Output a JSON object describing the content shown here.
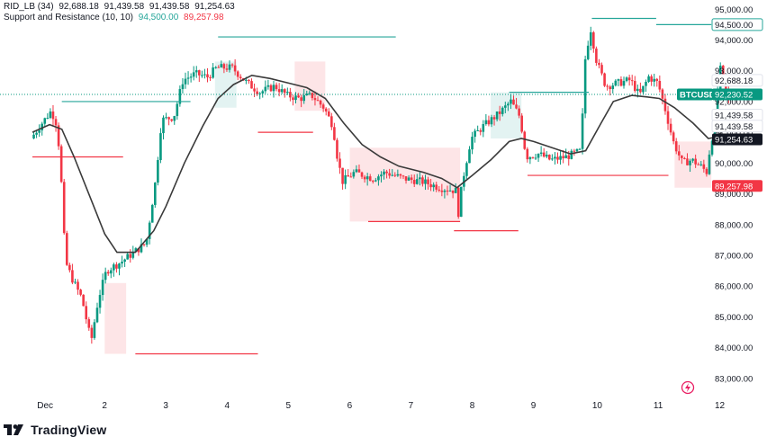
{
  "legend": {
    "line1": {
      "name": "RID_LB (34)",
      "values": [
        "92,688.18",
        "91,439.58",
        "91,439.58",
        "91,254.63"
      ]
    },
    "line2": {
      "name": "Support and Resistance (10, 10)",
      "values": [
        "94,500.00",
        "89,257.98"
      ],
      "colors": [
        "#26a69a",
        "#f23645"
      ]
    }
  },
  "watermark": "TradingView",
  "symbol_tag": "BTCUSD",
  "colors": {
    "up": "#089981",
    "down": "#f23645",
    "sma": "#3a3a3a",
    "support": "#f23645",
    "resistance": "#26a69a",
    "axis_text": "#131722"
  },
  "chart_data": {
    "type": "candlestick",
    "symbol": "BTCUSD",
    "ylim": [
      82500,
      95300
    ],
    "yticks": [
      83000,
      84000,
      85000,
      86000,
      87000,
      88000,
      89000,
      90000,
      91000,
      92000,
      93000,
      94000,
      95000
    ],
    "ytick_labels": [
      "83,000.00",
      "84,000.00",
      "85,000.00",
      "86,000.00",
      "87,000.00",
      "88,000.00",
      "89,000.00",
      "90,000.00",
      "91,000.00",
      "92,000.00",
      "93,000.00",
      "94,000.00",
      "95,000.00"
    ],
    "xlim": [
      0.82,
      12.25
    ],
    "xticks": [
      1,
      2,
      3,
      4,
      5,
      6,
      7,
      8,
      9,
      10,
      11,
      12
    ],
    "xtick_labels": [
      "Dec",
      "2",
      "3",
      "4",
      "5",
      "6",
      "7",
      "8",
      "9",
      "10",
      "11",
      "12"
    ],
    "price_path": [
      [
        0.82,
        90800
      ],
      [
        1.0,
        91300
      ],
      [
        1.15,
        91700
      ],
      [
        1.25,
        91200
      ],
      [
        1.32,
        89200
      ],
      [
        1.38,
        86800
      ],
      [
        1.5,
        86200
      ],
      [
        1.65,
        85600
      ],
      [
        1.8,
        84200
      ],
      [
        1.92,
        85600
      ],
      [
        2.05,
        86500
      ],
      [
        2.3,
        86800
      ],
      [
        2.5,
        87100
      ],
      [
        2.7,
        87400
      ],
      [
        2.85,
        89400
      ],
      [
        2.95,
        91400
      ],
      [
        3.15,
        91500
      ],
      [
        3.3,
        92700
      ],
      [
        3.5,
        92900
      ],
      [
        3.7,
        92800
      ],
      [
        3.85,
        93100
      ],
      [
        4.1,
        93100
      ],
      [
        4.35,
        92600
      ],
      [
        4.55,
        92300
      ],
      [
        4.8,
        92500
      ],
      [
        5.0,
        92200
      ],
      [
        5.2,
        92100
      ],
      [
        5.4,
        92200
      ],
      [
        5.6,
        91800
      ],
      [
        5.75,
        91200
      ],
      [
        5.8,
        90400
      ],
      [
        5.9,
        89400
      ],
      [
        6.1,
        89700
      ],
      [
        6.4,
        89500
      ],
      [
        6.6,
        89700
      ],
      [
        6.9,
        89500
      ],
      [
        7.2,
        89400
      ],
      [
        7.5,
        89200
      ],
      [
        7.75,
        89100
      ],
      [
        7.8,
        88300
      ],
      [
        7.85,
        89300
      ],
      [
        8.0,
        90800
      ],
      [
        8.2,
        91200
      ],
      [
        8.45,
        91600
      ],
      [
        8.65,
        92000
      ],
      [
        8.8,
        91500
      ],
      [
        8.9,
        90200
      ],
      [
        9.1,
        90300
      ],
      [
        9.3,
        90100
      ],
      [
        9.55,
        90200
      ],
      [
        9.8,
        90400
      ],
      [
        9.85,
        93200
      ],
      [
        9.95,
        94400
      ],
      [
        10.05,
        93300
      ],
      [
        10.2,
        92500
      ],
      [
        10.4,
        92600
      ],
      [
        10.6,
        92700
      ],
      [
        10.75,
        92200
      ],
      [
        10.9,
        92800
      ],
      [
        11.05,
        92600
      ],
      [
        11.15,
        91900
      ],
      [
        11.3,
        90700
      ],
      [
        11.45,
        90000
      ],
      [
        11.6,
        90100
      ],
      [
        11.75,
        89900
      ],
      [
        11.85,
        89700
      ],
      [
        11.9,
        90500
      ],
      [
        12.0,
        91500
      ],
      [
        12.05,
        93200
      ],
      [
        12.15,
        92400
      ],
      [
        12.2,
        92100
      ]
    ],
    "sma_path": [
      [
        0.82,
        91000
      ],
      [
        1.1,
        91250
      ],
      [
        1.3,
        91100
      ],
      [
        1.5,
        90200
      ],
      [
        1.8,
        88700
      ],
      [
        2.0,
        87700
      ],
      [
        2.2,
        87100
      ],
      [
        2.5,
        87100
      ],
      [
        2.8,
        87800
      ],
      [
        3.0,
        88600
      ],
      [
        3.3,
        90000
      ],
      [
        3.6,
        91200
      ],
      [
        3.85,
        92100
      ],
      [
        4.1,
        92550
      ],
      [
        4.4,
        92850
      ],
      [
        4.7,
        92750
      ],
      [
        5.0,
        92600
      ],
      [
        5.3,
        92450
      ],
      [
        5.6,
        92100
      ],
      [
        5.9,
        91300
      ],
      [
        6.2,
        90600
      ],
      [
        6.5,
        90200
      ],
      [
        6.8,
        89900
      ],
      [
        7.2,
        89700
      ],
      [
        7.5,
        89500
      ],
      [
        7.75,
        89200
      ],
      [
        8.0,
        89600
      ],
      [
        8.3,
        90100
      ],
      [
        8.6,
        90700
      ],
      [
        8.8,
        90800
      ],
      [
        9.0,
        90700
      ],
      [
        9.3,
        90500
      ],
      [
        9.6,
        90300
      ],
      [
        9.85,
        90400
      ],
      [
        10.1,
        91300
      ],
      [
        10.3,
        92000
      ],
      [
        10.6,
        92200
      ],
      [
        10.85,
        92150
      ],
      [
        11.05,
        92100
      ],
      [
        11.3,
        91800
      ],
      [
        11.6,
        91300
      ],
      [
        11.85,
        90800
      ],
      [
        12.0,
        90850
      ],
      [
        12.1,
        91100
      ],
      [
        12.2,
        91250
      ]
    ],
    "resistance_levels": [
      {
        "x": [
          1.3,
          3.4
        ],
        "y": 92000
      },
      {
        "x": [
          3.85,
          6.75
        ],
        "y": 94100
      },
      {
        "x": [
          8.6,
          9.9
        ],
        "y": 92300
      },
      {
        "x": [
          9.95,
          11.0
        ],
        "y": 94700
      },
      {
        "x": [
          11.0,
          11.9
        ],
        "y": 94500
      }
    ],
    "support_levels": [
      {
        "x": [
          0.82,
          2.3
        ],
        "y": 90200
      },
      {
        "x": [
          2.5,
          4.5
        ],
        "y": 83800
      },
      {
        "x": [
          4.5,
          5.4
        ],
        "y": 91000
      },
      {
        "x": [
          6.3,
          7.8
        ],
        "y": 88100
      },
      {
        "x": [
          7.7,
          8.75
        ],
        "y": 87800
      },
      {
        "x": [
          8.9,
          11.2
        ],
        "y": 89600
      }
    ],
    "zones": [
      {
        "x": [
          6.0,
          7.8
        ],
        "y": [
          88100,
          90500
        ],
        "color": "#f23645"
      },
      {
        "x": [
          2.0,
          2.35
        ],
        "y": [
          83800,
          86100
        ],
        "color": "#f23645"
      },
      {
        "x": [
          5.1,
          5.6
        ],
        "y": [
          91700,
          93300
        ],
        "color": "#f23645"
      },
      {
        "x": [
          8.3,
          8.8
        ],
        "y": [
          90800,
          92300
        ],
        "color": "#26a69a"
      },
      {
        "x": [
          3.8,
          4.15
        ],
        "y": [
          91800,
          93300
        ],
        "color": "#26a69a"
      },
      {
        "x": [
          11.3,
          11.9
        ],
        "y": [
          89200,
          90700
        ],
        "color": "#f23645"
      }
    ],
    "price_tags": [
      {
        "label": "95,000.00",
        "value": 95000,
        "bg": "#ffffff",
        "fg": "#131722",
        "border": false
      },
      {
        "label": "94,500.00",
        "value": 94500,
        "bg": "#ffffff",
        "fg": "#131722",
        "border": true,
        "bc": "#26a69a"
      },
      {
        "label": "92,688.18",
        "value": 92688,
        "bg": "#ffffff",
        "fg": "#131722",
        "border": true,
        "bc": "#e0e3eb"
      },
      {
        "label": "BTCUSD",
        "value": 92230,
        "bg": "#089981",
        "fg": "#ffffff",
        "border": false,
        "left": true
      },
      {
        "label": "92,230.52",
        "value": 92230,
        "bg": "#089981",
        "fg": "#ffffff",
        "border": false
      },
      {
        "label": "91,439.58",
        "value": 91560,
        "bg": "#ffffff",
        "fg": "#131722",
        "border": true,
        "bc": "#e0e3eb"
      },
      {
        "label": "91,439.58",
        "value": 91200,
        "bg": "#ffffff",
        "fg": "#131722",
        "border": true,
        "bc": "#e0e3eb"
      },
      {
        "label": "91,254.63",
        "value": 90770,
        "bg": "#131722",
        "fg": "#ffffff",
        "border": false
      },
      {
        "label": "89,257.98",
        "value": 89257,
        "bg": "#f23645",
        "fg": "#ffffff",
        "border": false
      }
    ],
    "last_price": 92230.52,
    "grid": false
  }
}
